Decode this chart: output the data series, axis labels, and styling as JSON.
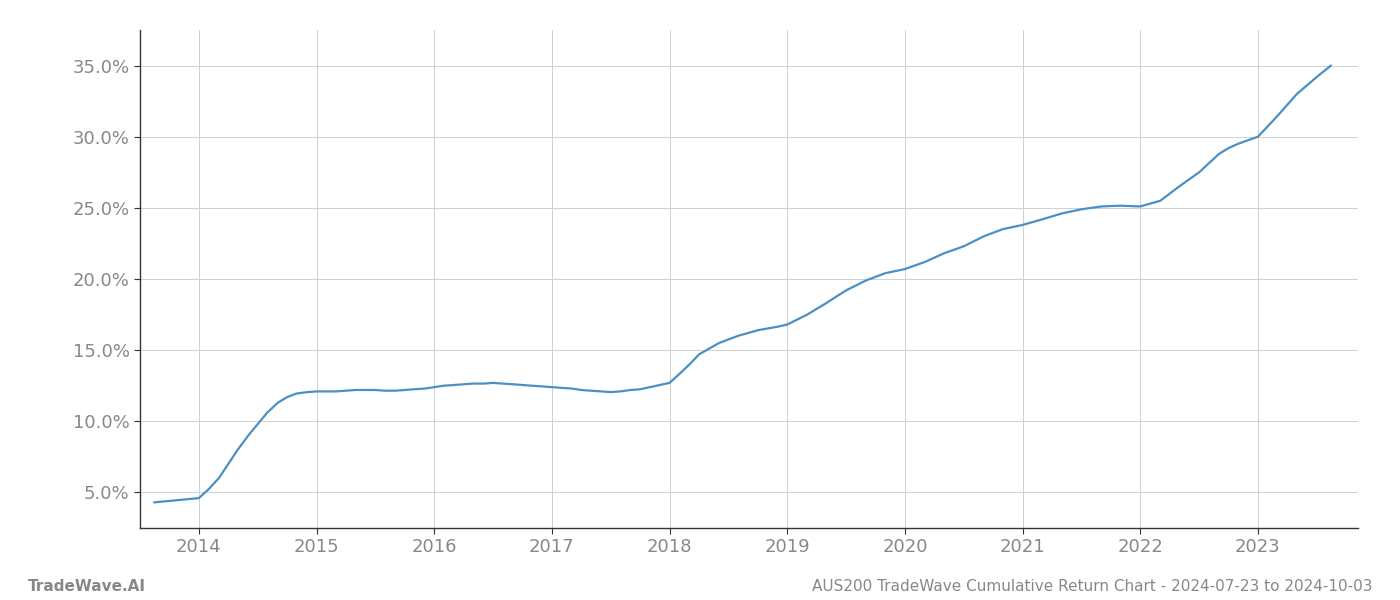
{
  "title": "AUS200 TradeWave Cumulative Return Chart - 2024-07-23 to 2024-10-03",
  "watermark": "TradeWave.AI",
  "line_color": "#4a90c4",
  "background_color": "#ffffff",
  "grid_color": "#d0d0d0",
  "x_values": [
    2013.62,
    2014.0,
    2014.08,
    2014.17,
    2014.25,
    2014.33,
    2014.42,
    2014.5,
    2014.58,
    2014.67,
    2014.75,
    2014.83,
    2014.92,
    2015.0,
    2015.08,
    2015.17,
    2015.25,
    2015.33,
    2015.42,
    2015.5,
    2015.58,
    2015.67,
    2015.75,
    2015.83,
    2015.92,
    2016.0,
    2016.08,
    2016.17,
    2016.25,
    2016.33,
    2016.42,
    2016.5,
    2016.58,
    2016.67,
    2016.75,
    2016.83,
    2016.92,
    2017.0,
    2017.08,
    2017.17,
    2017.25,
    2017.33,
    2017.42,
    2017.5,
    2017.58,
    2017.67,
    2017.75,
    2018.0,
    2018.08,
    2018.17,
    2018.25,
    2018.42,
    2018.58,
    2018.75,
    2018.92,
    2019.0,
    2019.17,
    2019.33,
    2019.5,
    2019.67,
    2019.83,
    2020.0,
    2020.17,
    2020.33,
    2020.5,
    2020.67,
    2020.83,
    2021.0,
    2021.17,
    2021.33,
    2021.5,
    2021.67,
    2021.83,
    2022.0,
    2022.17,
    2022.33,
    2022.5,
    2022.67,
    2022.75,
    2022.83,
    2023.0,
    2023.17,
    2023.33,
    2023.5,
    2023.62
  ],
  "y_values": [
    4.3,
    4.6,
    5.2,
    6.0,
    7.0,
    8.0,
    9.0,
    9.8,
    10.6,
    11.3,
    11.7,
    11.95,
    12.05,
    12.1,
    12.1,
    12.1,
    12.15,
    12.2,
    12.2,
    12.2,
    12.15,
    12.15,
    12.2,
    12.25,
    12.3,
    12.4,
    12.5,
    12.55,
    12.6,
    12.65,
    12.65,
    12.7,
    12.65,
    12.6,
    12.55,
    12.5,
    12.45,
    12.4,
    12.35,
    12.3,
    12.2,
    12.15,
    12.1,
    12.05,
    12.1,
    12.2,
    12.25,
    12.7,
    13.3,
    14.0,
    14.7,
    15.5,
    16.0,
    16.4,
    16.65,
    16.8,
    17.5,
    18.3,
    19.2,
    19.9,
    20.4,
    20.7,
    21.2,
    21.8,
    22.3,
    23.0,
    23.5,
    23.8,
    24.2,
    24.6,
    24.9,
    25.1,
    25.15,
    25.1,
    25.5,
    26.5,
    27.5,
    28.8,
    29.2,
    29.5,
    30.0,
    31.5,
    33.0,
    34.2,
    35.0
  ],
  "xlim": [
    2013.5,
    2023.85
  ],
  "ylim": [
    2.5,
    37.5
  ],
  "xticks": [
    2014,
    2015,
    2016,
    2017,
    2018,
    2019,
    2020,
    2021,
    2022,
    2023
  ],
  "yticks": [
    5.0,
    10.0,
    15.0,
    20.0,
    25.0,
    30.0,
    35.0
  ],
  "ytick_labels": [
    "5.0%",
    "10.0%",
    "15.0%",
    "20.0%",
    "25.0%",
    "30.0%",
    "35.0%"
  ],
  "line_width": 1.6,
  "tick_label_color": "#888888",
  "tick_label_size": 13,
  "footer_text_left": "TradeWave.AI",
  "footer_text_right": "AUS200 TradeWave Cumulative Return Chart - 2024-07-23 to 2024-10-03",
  "footer_color": "#888888",
  "footer_size": 11,
  "left_spine_color": "#333333",
  "bottom_spine_color": "#333333"
}
